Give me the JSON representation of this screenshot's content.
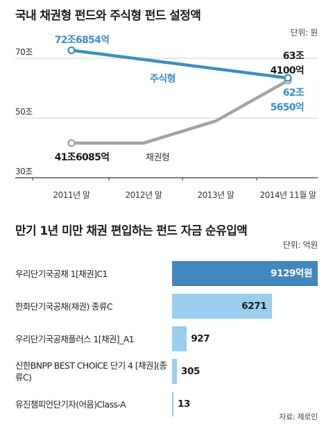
{
  "chart_data": [
    {
      "type": "line",
      "title": "국내 채권형 펀드와 주식형 펀드 설정액",
      "unit": "단위: 원",
      "categories": [
        "2011년 말",
        "2012년 말",
        "2013년 말",
        "2014년 11월 말"
      ],
      "yticks": [
        "70조",
        "50조",
        "30조"
      ],
      "ytick_values": [
        70,
        50,
        30
      ],
      "ylim": [
        30,
        78
      ],
      "series": [
        {
          "name": "주식형",
          "color": "#3f8dc1",
          "points": [
            [
              0,
              72.6854
            ],
            [
              3,
              63.41
            ]
          ],
          "data_labels": [
            "72조6854억",
            "63조 4100억"
          ]
        },
        {
          "name": "채권형",
          "color": "#a3a3a3",
          "points": [
            [
              0,
              41.6085
            ],
            [
              1,
              41.6085
            ],
            [
              2,
              49.0
            ],
            [
              3,
              62.565
            ]
          ],
          "data_labels": [
            "41조6085억",
            "62조 5650억"
          ]
        }
      ]
    },
    {
      "type": "bar",
      "orientation": "horizontal",
      "title": "만기 1년 미만 채권 편입하는 펀드 자금 순유입액",
      "unit": "단위: 억원",
      "source": "자료: 제로인",
      "categories": [
        "우리단기국공채 1[채권]C1",
        "한화단기국공채(채권) 종류C",
        "우리단기국공채플러스 1[채권]_A1",
        "신한BNPP BEST CHOICE 단기 4 [채권](종류C)",
        "유진챔피언단기자(어음)Class-A"
      ],
      "values": [
        9129,
        6271,
        927,
        305,
        13
      ],
      "value_labels": [
        "9129억원",
        "6271",
        "927",
        "305",
        "13"
      ],
      "xlim": [
        0,
        9129
      ],
      "colors": [
        "#4287bd",
        "#9bcdee",
        "#9bcdee",
        "#9bcdee",
        "#9bcdee"
      ]
    }
  ]
}
